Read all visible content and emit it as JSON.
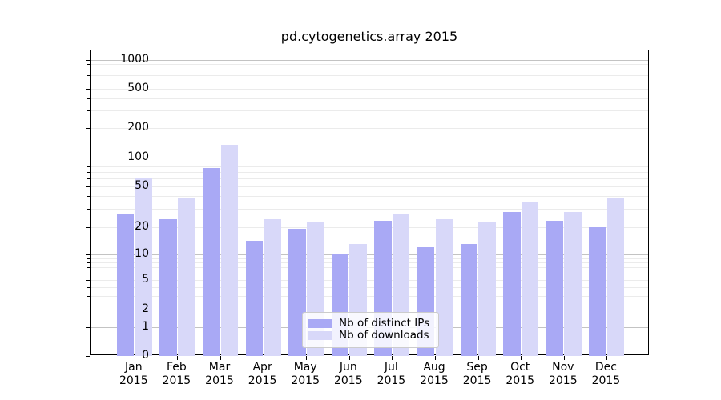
{
  "chart_data": {
    "type": "bar",
    "title": "pd.cytogenetics.array 2015",
    "year": "2015",
    "categories": [
      "Jan",
      "Feb",
      "Mar",
      "Apr",
      "May",
      "Jun",
      "Jul",
      "Aug",
      "Sep",
      "Oct",
      "Nov",
      "Dec"
    ],
    "series": [
      {
        "name": "Nb of distinct IPs",
        "color": "#a9a9f5",
        "values": [
          27,
          24,
          78,
          14,
          19,
          10,
          23,
          12,
          13,
          28,
          23,
          20
        ]
      },
      {
        "name": "Nb of downloads",
        "color": "#d8d8f9",
        "values": [
          60,
          39,
          134,
          24,
          22,
          13,
          27,
          24,
          22,
          35,
          28,
          39
        ]
      }
    ],
    "xlabel": "",
    "ylabel": "",
    "yscale": "symlog",
    "ytick_labels": [
      "0",
      "1",
      "2",
      "5",
      "10",
      "20",
      "50",
      "100",
      "200",
      "500",
      "1000"
    ],
    "ylim": [
      0,
      1300
    ],
    "grid": true,
    "legend_position": "lower center",
    "colors": {
      "grid_major": "#c3c3c3",
      "grid_minor": "#ebebeb",
      "axis": "#000000",
      "background": "#ffffff"
    }
  }
}
